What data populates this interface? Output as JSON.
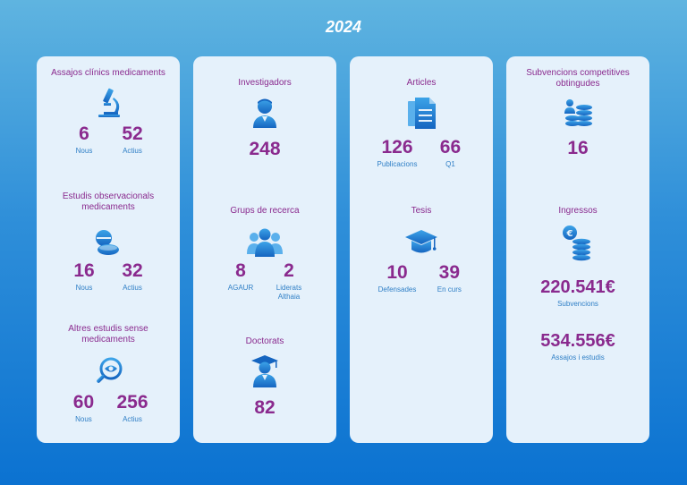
{
  "year": "2024",
  "col1": {
    "assajos": {
      "title": "Assajos clínics medicaments",
      "v1": "6",
      "l1": "Nous",
      "v2": "52",
      "l2": "Actius"
    },
    "observacionals": {
      "title": "Estudis observacionals medicaments",
      "v1": "16",
      "l1": "Nous",
      "v2": "32",
      "l2": "Actius"
    },
    "altres": {
      "title": "Altres estudis sense medicaments",
      "v1": "60",
      "l1": "Nous",
      "v2": "256",
      "l2": "Actius"
    }
  },
  "col2": {
    "investigadors": {
      "title": "Investigadors",
      "value": "248"
    },
    "grups": {
      "title": "Grups de recerca",
      "v1": "8",
      "l1": "AGAUR",
      "v2": "2",
      "l2a": "Liderats",
      "l2b": "Althaia"
    },
    "doctorats": {
      "title": "Doctorats",
      "value": "82"
    }
  },
  "col3": {
    "articles": {
      "title": "Articles",
      "v1": "126",
      "l1": "Publicacions",
      "v2": "66",
      "l2": "Q1"
    },
    "tesis": {
      "title": "Tesis",
      "v1": "10",
      "l1": "Defensades",
      "v2": "39",
      "l2": "En curs"
    }
  },
  "col4": {
    "subvencions": {
      "title": "Subvencions competitives obtingudes",
      "value": "16"
    },
    "ingressos": {
      "title": "Ingressos",
      "v1": "220.541€",
      "l1": "Subvencions",
      "v2": "534.556€",
      "l2": "Assajos i estudis"
    }
  },
  "icons": [
    "microscope-icon",
    "pills-icon",
    "magnifier-eye-icon",
    "doctor-icon",
    "group-icon",
    "graduate-icon",
    "documents-icon",
    "graduation-cap-icon",
    "person-coins-icon",
    "euro-coins-icon"
  ]
}
